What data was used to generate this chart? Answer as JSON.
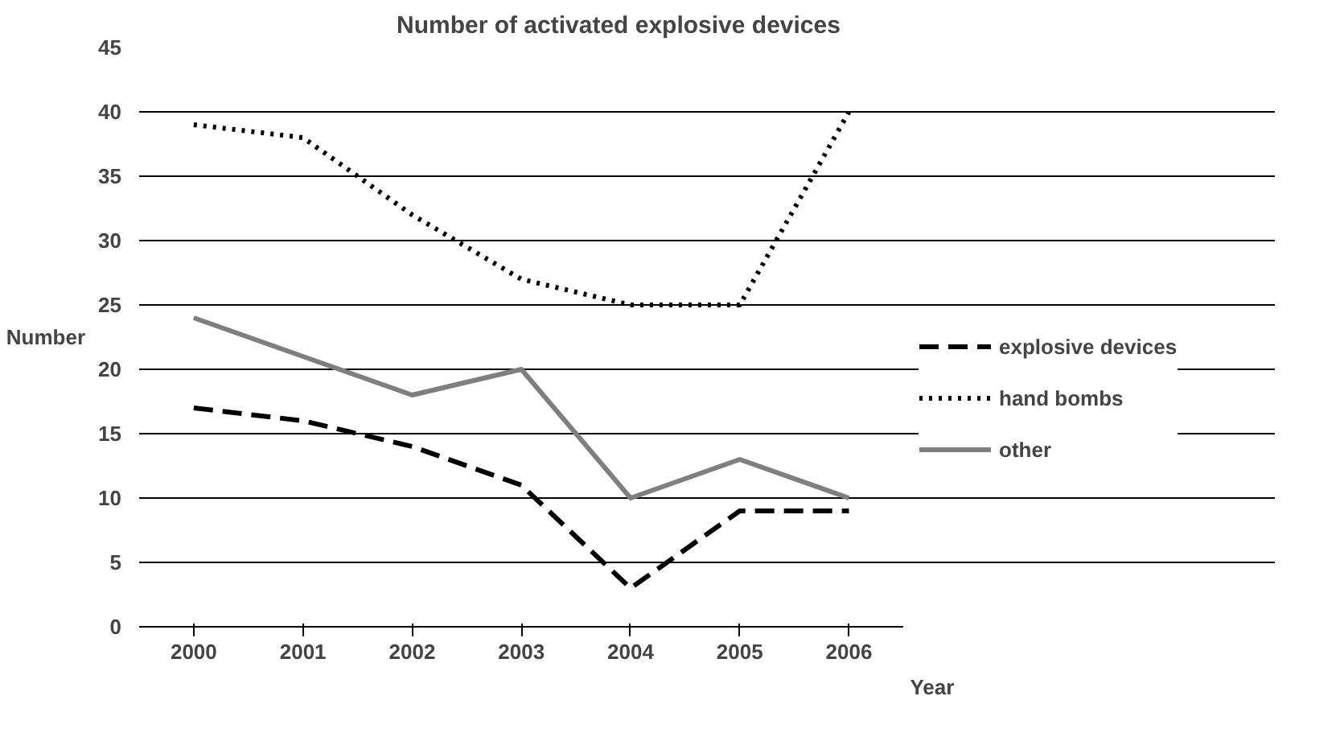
{
  "chart_data": {
    "type": "line",
    "title": "Number of activated explosive devices",
    "xlabel": "Year",
    "ylabel": "Number",
    "categories": [
      "2000",
      "2001",
      "2002",
      "2003",
      "2004",
      "2005",
      "2006"
    ],
    "series": [
      {
        "name": "explosive devices",
        "color": "#000000",
        "line_style": "dashed",
        "values": [
          17,
          16,
          14,
          11,
          3,
          9,
          9
        ]
      },
      {
        "name": "hand bombs",
        "color": "#000000",
        "line_style": "dotted",
        "values": [
          39,
          38,
          32,
          27,
          25,
          25,
          40
        ]
      },
      {
        "name": "other",
        "color": "#7f7f7f",
        "line_style": "solid",
        "values": [
          24,
          21,
          18,
          20,
          10,
          13,
          10
        ]
      }
    ],
    "ylim": [
      0,
      45
    ],
    "yticks": [
      0,
      5,
      10,
      15,
      20,
      25,
      30,
      35,
      40,
      45
    ],
    "grid": "y",
    "legend": "right",
    "marker": "none"
  }
}
